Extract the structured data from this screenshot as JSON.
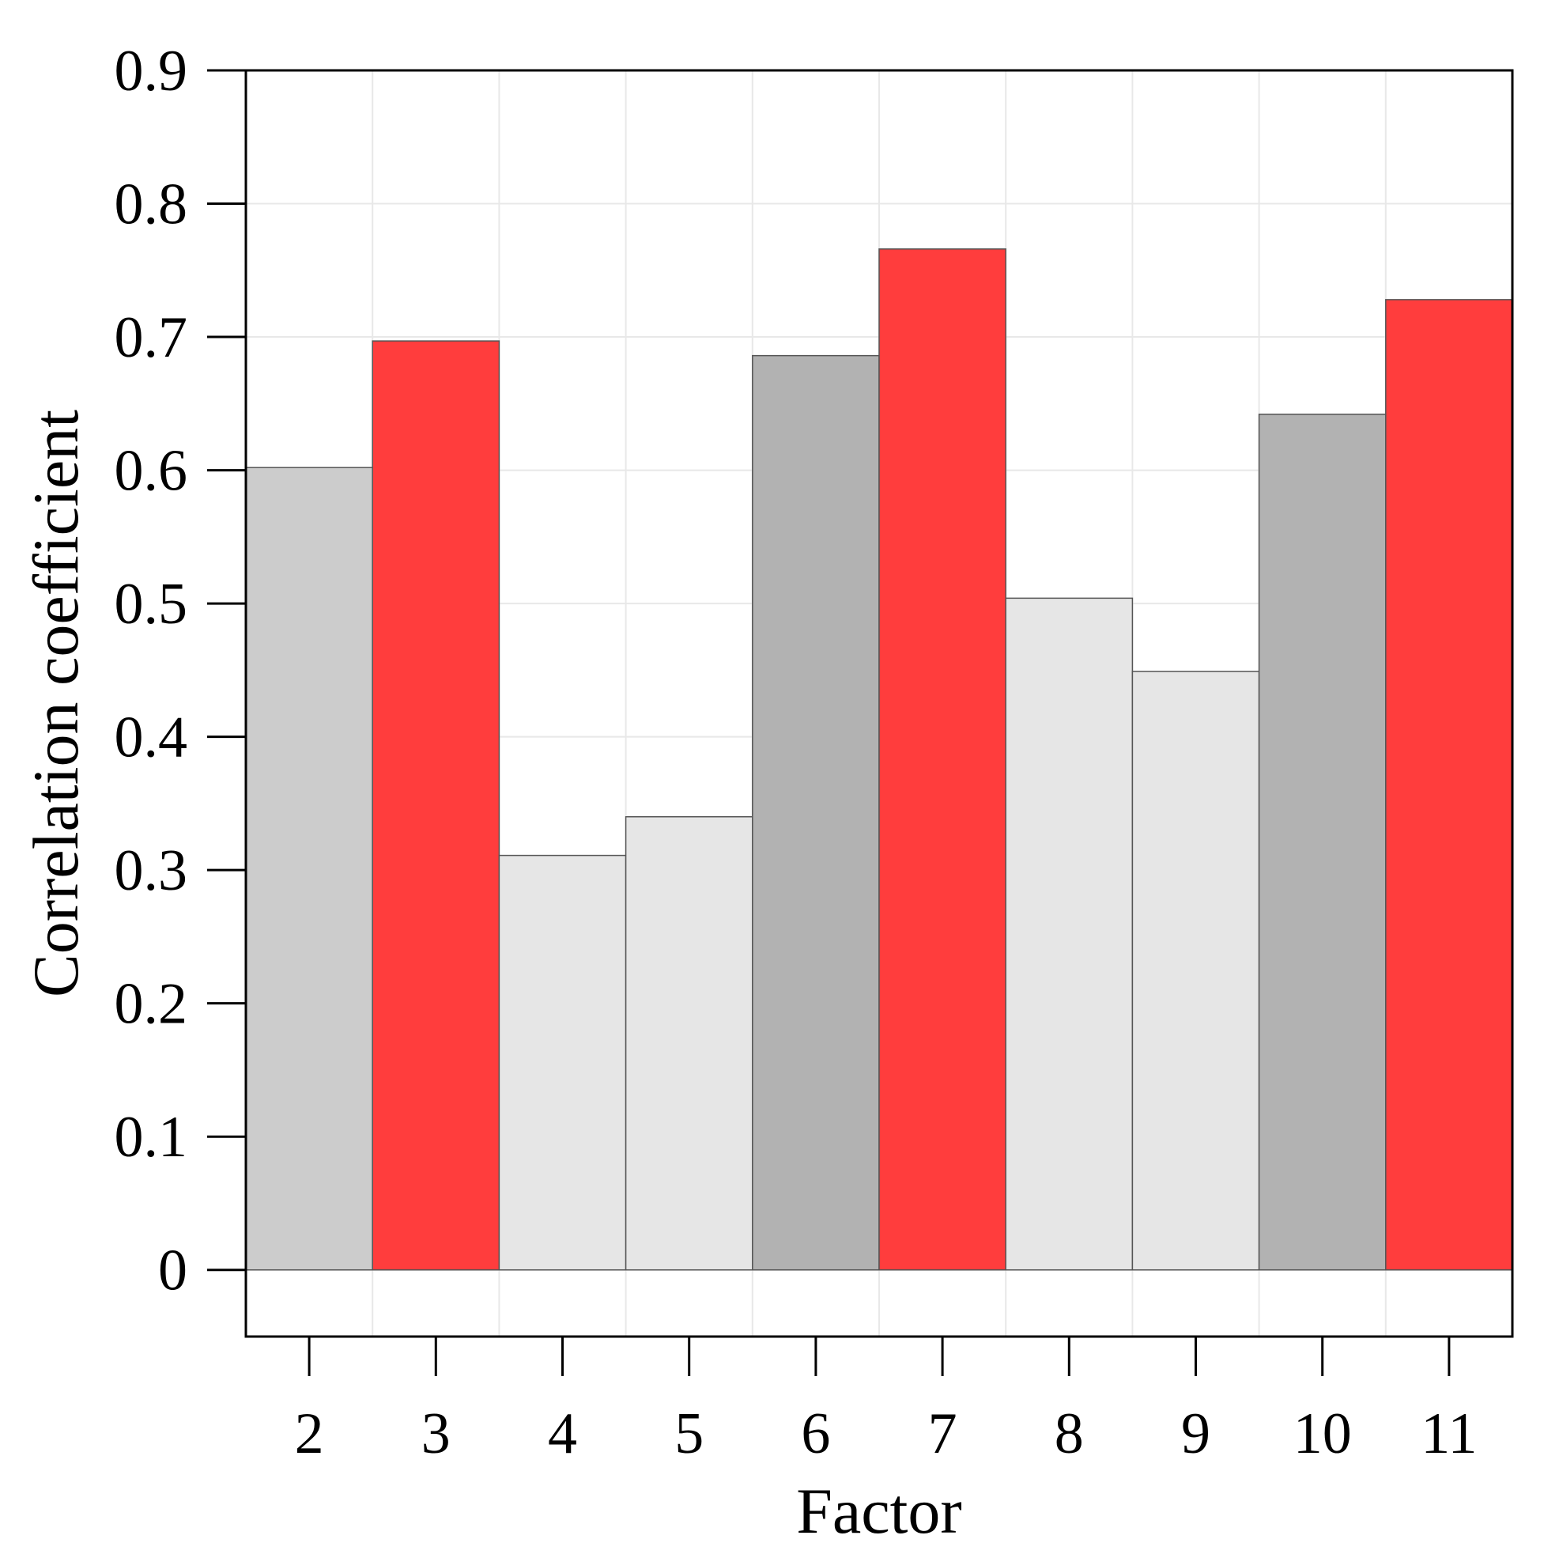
{
  "chart_data": {
    "type": "bar",
    "title": "",
    "xlabel": "Factor",
    "ylabel": "Correlation coefficient",
    "categories": [
      "2",
      "3",
      "4",
      "5",
      "6",
      "7",
      "8",
      "9",
      "10",
      "11"
    ],
    "values": [
      0.602,
      0.697,
      0.311,
      0.34,
      0.686,
      0.766,
      0.504,
      0.449,
      0.642,
      0.728
    ],
    "bar_colors": [
      "#cccccc",
      "#ff3d3d",
      "#e6e6e6",
      "#e6e6e6",
      "#b2b2b2",
      "#ff3d3d",
      "#e6e6e6",
      "#e6e6e6",
      "#b2b2b2",
      "#ff3d3d"
    ],
    "ylim": [
      -0.05,
      0.9
    ],
    "yticks": [
      0,
      0.1,
      0.2,
      0.3,
      0.4,
      0.5,
      0.6,
      0.7,
      0.8,
      0.9
    ],
    "ytick_labels": [
      "0",
      "0.1",
      "0.2",
      "0.3",
      "0.4",
      "0.5",
      "0.6",
      "0.7",
      "0.8",
      "0.9"
    ],
    "grid": true,
    "legend": "none"
  }
}
